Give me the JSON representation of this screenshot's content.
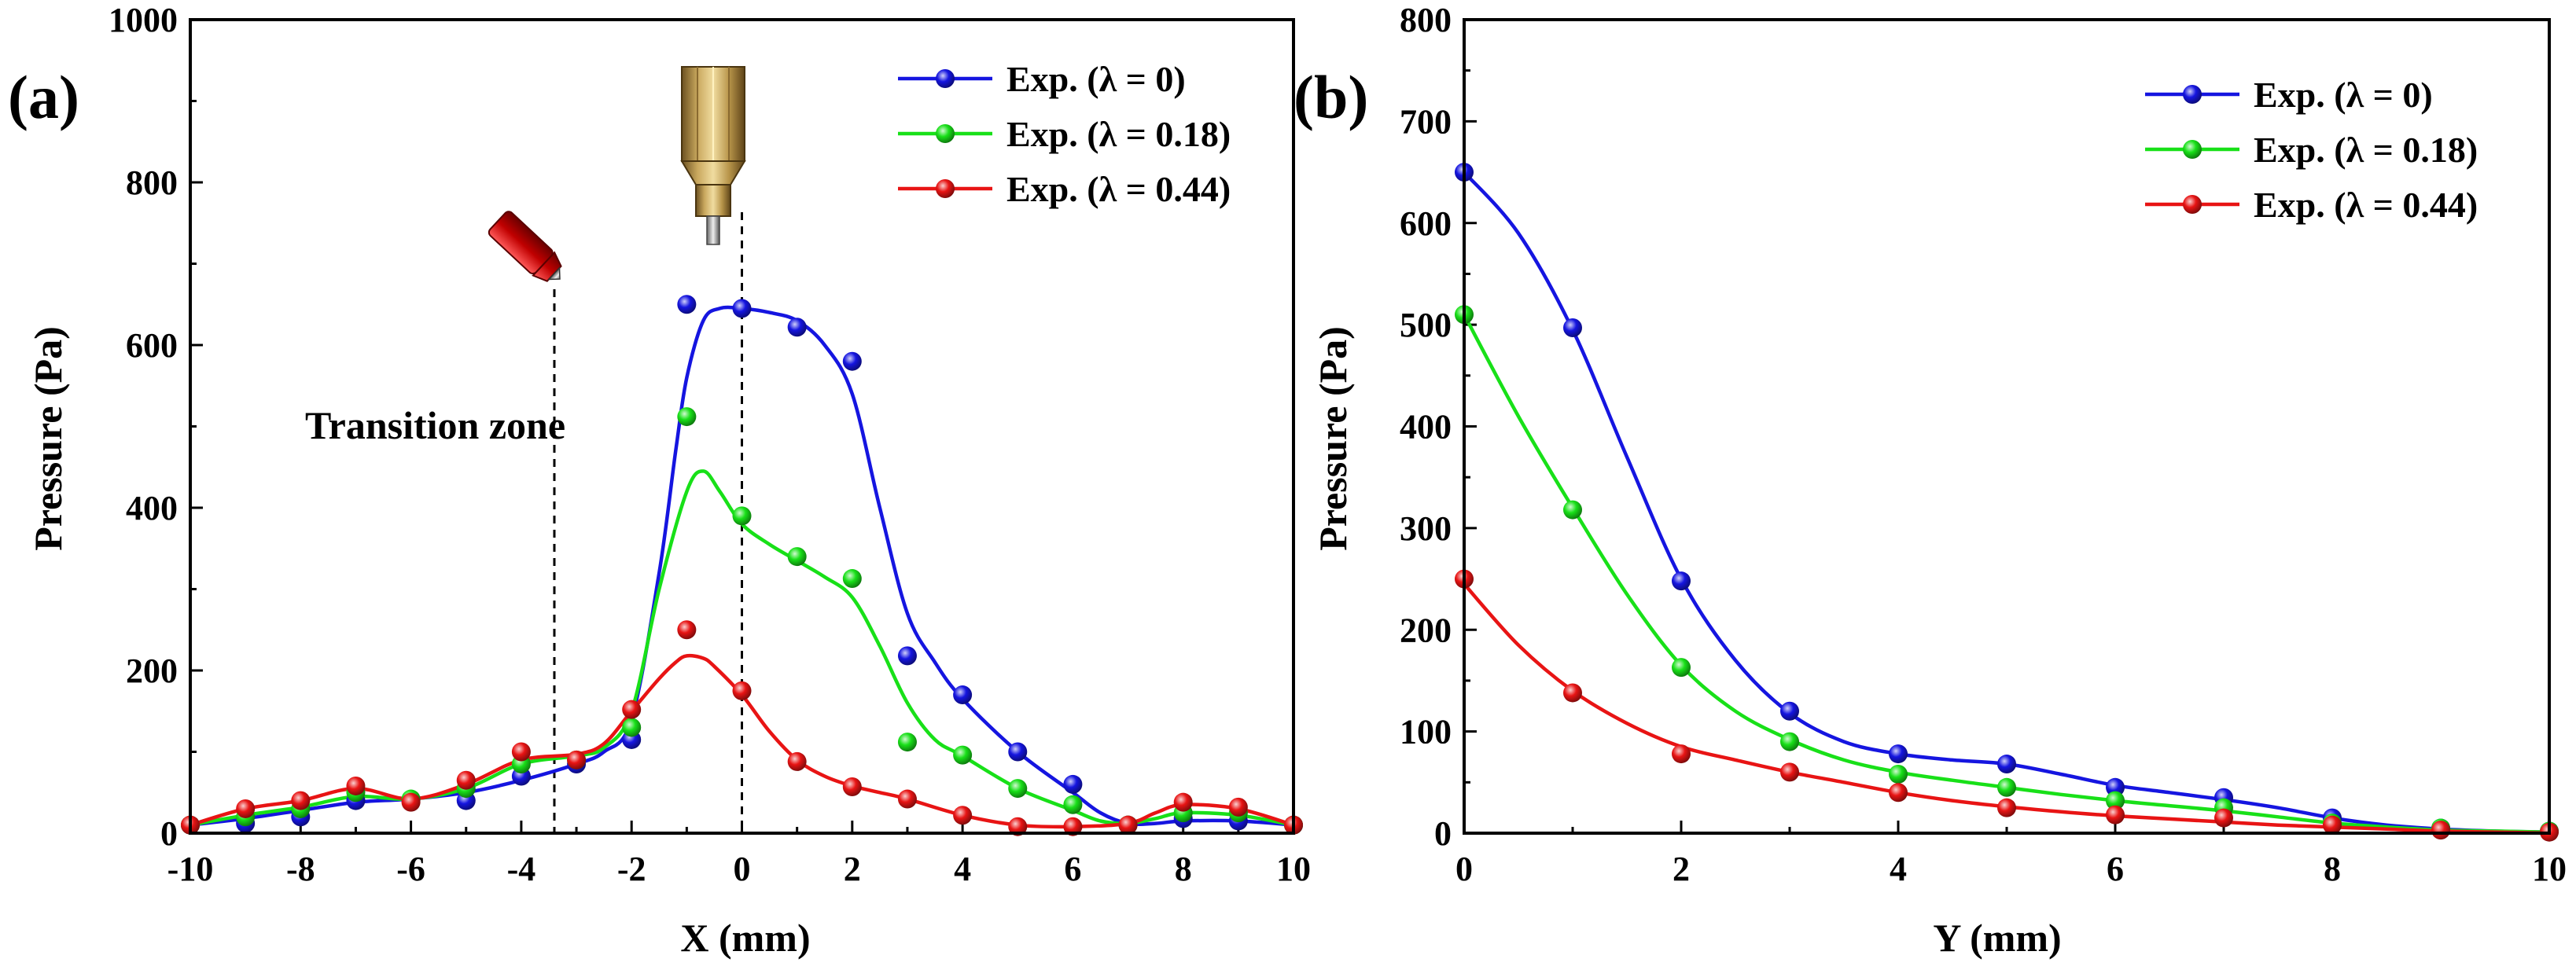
{
  "panels": [
    {
      "label": "(a)"
    },
    {
      "label": "(b)"
    }
  ],
  "colors": {
    "blue": "#1515e0",
    "green": "#18e018",
    "red": "#e81414"
  },
  "chart_data": [
    {
      "type": "line",
      "panel": "(a)",
      "xlabel": "X (mm)",
      "ylabel": "Pressure (Pa)",
      "xlim": [
        -10,
        10
      ],
      "ylim": [
        0,
        1000
      ],
      "xticks": [
        -10,
        -8,
        -6,
        -4,
        -2,
        0,
        2,
        4,
        6,
        8,
        10
      ],
      "yticks": [
        0,
        200,
        400,
        600,
        800,
        1000
      ],
      "legend_position": "top-right",
      "annotations": {
        "transition_text": "Transition zone",
        "transition_x": -3.4,
        "nozzle_x": 0
      },
      "series": [
        {
          "name": "Exp. (λ = 0)",
          "color": "#1515e0",
          "points": {
            "x": [
              -10,
              -9,
              -8,
              -7,
              -6,
              -5,
              -4,
              -3,
              -2,
              -1,
              0,
              1,
              2,
              3,
              4,
              5,
              6,
              7,
              8,
              9,
              10
            ],
            "y": [
              10,
              12,
              20,
              40,
              40,
              40,
              70,
              85,
              115,
              650,
              645,
              622,
              580,
              218,
              170,
              100,
              60,
              10,
              18,
              15,
              10
            ]
          },
          "curve": {
            "x": [
              -10,
              -9,
              -8,
              -7,
              -6,
              -5,
              -4,
              -3,
              -2.5,
              -2,
              -1.5,
              -1.2,
              -1,
              -0.7,
              -0.4,
              0,
              0.5,
              1,
              1.5,
              2,
              2.5,
              3,
              3.5,
              4,
              5,
              6,
              6.5,
              7,
              7.5,
              8,
              9,
              10
            ],
            "y": [
              10,
              18,
              28,
              38,
              42,
              50,
              65,
              85,
              100,
              140,
              320,
              470,
              560,
              630,
              645,
              645,
              640,
              630,
              600,
              540,
              400,
              270,
              210,
              165,
              100,
              50,
              25,
              12,
              12,
              15,
              15,
              10
            ]
          }
        },
        {
          "name": "Exp. (λ = 0.18)",
          "color": "#18e018",
          "points": {
            "x": [
              -10,
              -9,
              -8,
              -7,
              -6,
              -5,
              -4,
              -3,
              -2,
              -1,
              0,
              1,
              2,
              3,
              4,
              5,
              6,
              7,
              8,
              9,
              10
            ],
            "y": [
              10,
              20,
              30,
              50,
              42,
              55,
              85,
              90,
              130,
              512,
              390,
              340,
              313,
              112,
              96,
              55,
              35,
              10,
              25,
              25,
              10
            ]
          },
          "curve": {
            "x": [
              -10,
              -9,
              -8,
              -7,
              -6,
              -5,
              -4,
              -3,
              -2.5,
              -2,
              -1.5,
              -1,
              -0.7,
              -0.4,
              0,
              0.5,
              1,
              1.5,
              2,
              2.5,
              3,
              3.5,
              4,
              5,
              6,
              6.5,
              7,
              7.5,
              8,
              9,
              10
            ],
            "y": [
              10,
              22,
              32,
              45,
              42,
              55,
              85,
              95,
              105,
              150,
              300,
              420,
              445,
              420,
              380,
              355,
              335,
              315,
              290,
              230,
              160,
              115,
              95,
              55,
              28,
              15,
              12,
              18,
              25,
              22,
              10
            ]
          }
        },
        {
          "name": "Exp. (λ = 0.44)",
          "color": "#e81414",
          "points": {
            "x": [
              -10,
              -9,
              -8,
              -7,
              -6,
              -5,
              -4,
              -3,
              -2,
              -1,
              0,
              1,
              2,
              3,
              4,
              5,
              6,
              7,
              8,
              9,
              10
            ],
            "y": [
              10,
              30,
              40,
              58,
              38,
              65,
              100,
              90,
              152,
              250,
              175,
              88,
              57,
              42,
              22,
              8,
              8,
              10,
              38,
              32,
              10
            ]
          },
          "curve": {
            "x": [
              -10,
              -9,
              -8,
              -7,
              -6,
              -5,
              -4,
              -3,
              -2.5,
              -2,
              -1.5,
              -1.2,
              -1,
              -0.7,
              -0.5,
              0,
              0.5,
              1,
              1.5,
              2,
              2.5,
              3,
              4,
              5,
              6,
              7,
              7.5,
              8,
              9,
              10
            ],
            "y": [
              10,
              30,
              40,
              55,
              42,
              60,
              90,
              97,
              110,
              150,
              190,
              210,
              218,
              215,
              205,
              170,
              125,
              90,
              70,
              58,
              50,
              42,
              22,
              10,
              8,
              12,
              25,
              35,
              30,
              10
            ]
          }
        }
      ]
    },
    {
      "type": "line",
      "panel": "(b)",
      "xlabel": "Y (mm)",
      "ylabel": "Pressure (Pa)",
      "xlim": [
        0,
        10
      ],
      "ylim": [
        0,
        800
      ],
      "xticks": [
        0,
        2,
        4,
        6,
        8,
        10
      ],
      "yticks": [
        0,
        100,
        200,
        300,
        400,
        500,
        600,
        700,
        800
      ],
      "legend_position": "top-right",
      "series": [
        {
          "name": "Exp. (λ = 0)",
          "color": "#1515e0",
          "points": {
            "x": [
              0,
              1,
              2,
              3,
              4,
              5,
              6,
              7,
              8,
              9,
              10
            ],
            "y": [
              650,
              497,
              248,
              120,
              78,
              68,
              45,
              35,
              15,
              5,
              2
            ]
          },
          "curve": {
            "x": [
              0,
              0.5,
              1,
              1.5,
              2,
              2.5,
              3,
              3.5,
              4,
              4.5,
              5,
              5.5,
              6,
              6.5,
              7,
              7.5,
              8,
              8.5,
              9,
              9.5,
              10
            ],
            "y": [
              650,
              590,
              495,
              370,
              250,
              170,
              118,
              90,
              78,
              72,
              68,
              58,
              47,
              40,
              33,
              25,
              15,
              8,
              4,
              2,
              1
            ]
          }
        },
        {
          "name": "Exp. (λ = 0.18)",
          "color": "#18e018",
          "points": {
            "x": [
              0,
              1,
              2,
              3,
              4,
              5,
              6,
              7,
              8,
              9,
              10
            ],
            "y": [
              510,
              318,
              163,
              90,
              58,
              45,
              32,
              25,
              10,
              5,
              2
            ]
          },
          "curve": {
            "x": [
              0,
              0.5,
              1,
              1.5,
              2,
              2.5,
              3,
              3.5,
              4,
              4.5,
              5,
              5.5,
              6,
              6.5,
              7,
              7.5,
              8,
              8.5,
              9,
              9.5,
              10
            ],
            "y": [
              510,
              410,
              320,
              235,
              165,
              120,
              92,
              72,
              60,
              52,
              45,
              38,
              32,
              27,
              22,
              16,
              10,
              6,
              3,
              2,
              1
            ]
          }
        },
        {
          "name": "Exp. (λ = 0.44)",
          "color": "#e81414",
          "points": {
            "x": [
              0,
              1,
              2,
              3,
              4,
              5,
              6,
              7,
              8,
              9,
              10
            ],
            "y": [
              250,
              138,
              78,
              60,
              40,
              25,
              18,
              15,
              8,
              3,
              1
            ]
          },
          "curve": {
            "x": [
              0,
              0.5,
              1,
              1.5,
              2,
              2.5,
              3,
              3.5,
              4,
              4.5,
              5,
              5.5,
              6,
              6.5,
              7,
              7.5,
              8,
              8.5,
              9,
              9.5,
              10
            ],
            "y": [
              245,
              185,
              140,
              108,
              85,
              72,
              60,
              50,
              40,
              32,
              26,
              21,
              17,
              14,
              11,
              8,
              6,
              4,
              2,
              1,
              0
            ]
          }
        }
      ]
    }
  ]
}
